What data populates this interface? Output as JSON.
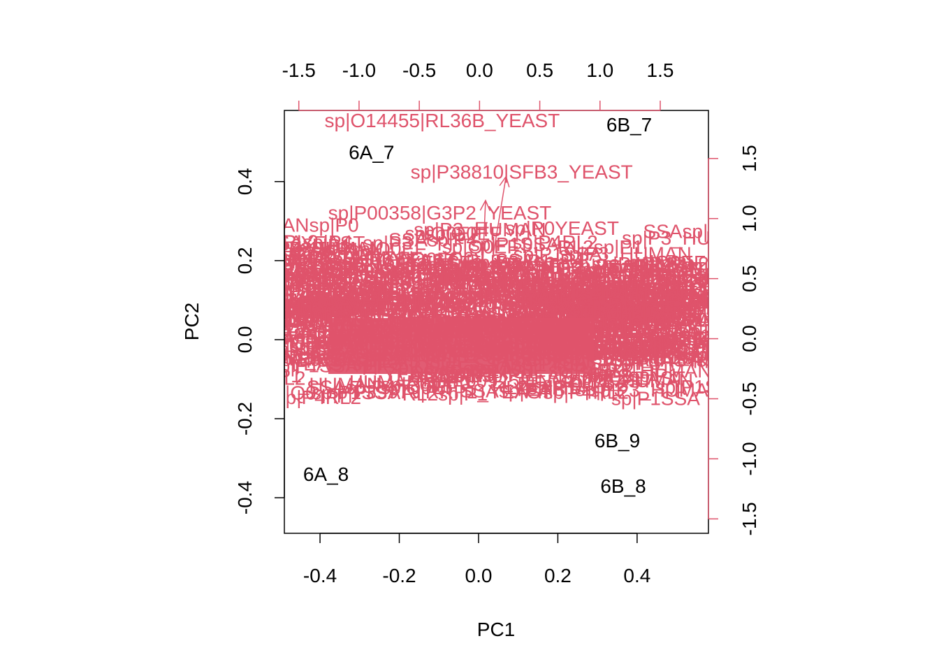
{
  "chart_data": {
    "type": "scatter",
    "subtype": "biplot",
    "xlabel": "PC1",
    "ylabel": "PC2",
    "xlim": [
      -0.49,
      0.58
    ],
    "ylim": [
      -0.49,
      0.58
    ],
    "top_right_lim": [
      -1.62,
      1.9
    ],
    "x_ticks": [
      -0.4,
      -0.2,
      0.0,
      0.2,
      0.4
    ],
    "x_tick_labels": [
      "-0.4",
      "-0.2",
      "0.0",
      "0.2",
      "0.4"
    ],
    "y_ticks": [
      -0.4,
      -0.2,
      0.0,
      0.2,
      0.4
    ],
    "y_tick_labels": [
      "-0.4",
      "-0.2",
      "0.0",
      "0.2",
      "0.4"
    ],
    "top_ticks": [
      -1.5,
      -1.0,
      -0.5,
      0.0,
      0.5,
      1.0,
      1.5
    ],
    "top_tick_labels": [
      "-1.5",
      "-1.0",
      "-0.5",
      "0.0",
      "0.5",
      "1.0",
      "1.5"
    ],
    "right_ticks": [
      -1.5,
      -1.0,
      -0.5,
      0.0,
      0.5,
      1.0,
      1.5
    ],
    "right_tick_labels": [
      "-1.5",
      "-1.0",
      "-0.5",
      "0.0",
      "0.5",
      "1.0",
      "1.5"
    ],
    "colors": {
      "observations": "#000000",
      "loadings": "#DF536B",
      "axes": "#000000"
    },
    "observations": [
      {
        "label": "6B_7",
        "x": 0.38,
        "y": 0.545
      },
      {
        "label": "6A_7",
        "x": -0.27,
        "y": 0.475
      },
      {
        "label": "6B_9",
        "x": 0.35,
        "y": -0.255
      },
      {
        "label": "6A_8",
        "x": -0.385,
        "y": -0.34
      },
      {
        "label": "6B_8",
        "x": 0.365,
        "y": -0.37
      }
    ],
    "loadings": [
      {
        "label": "sp|O14455|RL36B_YEAST",
        "x": -0.31,
        "y": 1.82
      },
      {
        "label": "sp|P38810|SFB3_YEAST",
        "x": 0.35,
        "y": 1.39
      },
      {
        "label": "sp|P00358|G3P2_YEAST",
        "x": -0.33,
        "y": 1.05
      },
      {
        "label": "sp|P39978|RRP1_YEAST",
        "x": -0.33,
        "y": -0.44
      },
      {
        "label": "sp|P10592|SSA2_YEAST",
        "x": -0.28,
        "y": 0.62
      },
      {
        "label": "sp|Q03559|YPT1_HUMAN",
        "x": 0.05,
        "y": 0.5
      },
      {
        "label": "sp|P32324|EF2_YEAST",
        "x": 0.62,
        "y": 0.6
      },
      {
        "label": "sp|P02994|EF1A_YEAST",
        "x": 0.3,
        "y": 0.34
      },
      {
        "label": "sp|P00925|ENO2_YEAST",
        "x": 0.5,
        "y": -0.35
      },
      {
        "label": "sp|P00360|G3P1_YEAST",
        "x": -0.5,
        "y": 0.35
      }
    ],
    "arrows": [
      {
        "x": -0.2,
        "y": 0.42
      },
      {
        "x": -0.15,
        "y": 0.46
      },
      {
        "x": 0.05,
        "y": 1.15
      },
      {
        "x": 0.22,
        "y": 1.35
      }
    ]
  }
}
